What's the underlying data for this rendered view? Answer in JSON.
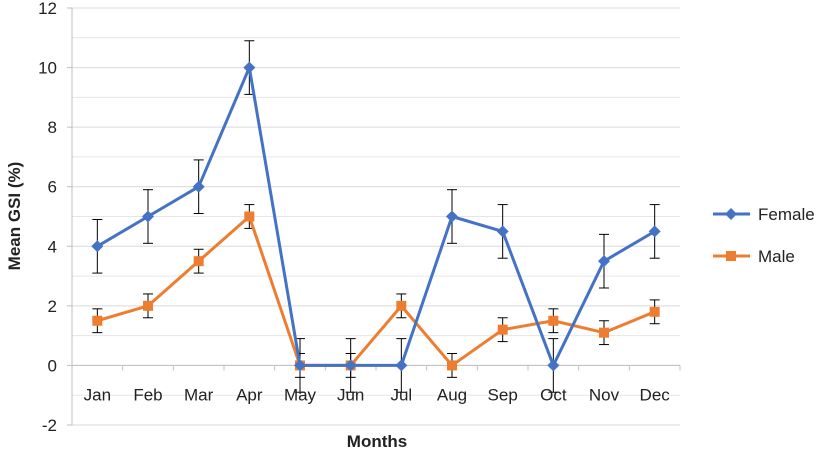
{
  "chart_data": {
    "type": "line",
    "categories": [
      "Jan",
      "Feb",
      "Mar",
      "Apr",
      "May",
      "Jun",
      "Jul",
      "Aug",
      "Sep",
      "Oct",
      "Nov",
      "Dec"
    ],
    "series": [
      {
        "name": "Female",
        "color": "#4472C4",
        "marker": "diamond",
        "values": [
          4,
          5,
          6,
          10,
          0,
          0,
          0,
          5,
          4.5,
          0,
          3.5,
          4.5
        ],
        "error": [
          0.9,
          0.9,
          0.9,
          0.9,
          0.9,
          0.9,
          0.9,
          0.9,
          0.9,
          0.9,
          0.9,
          0.9
        ]
      },
      {
        "name": "Male",
        "color": "#ED7D31",
        "marker": "square",
        "values": [
          1.5,
          2,
          3.5,
          5,
          0,
          0,
          2,
          0,
          1.2,
          1.5,
          1.1,
          1.8
        ],
        "error": [
          0.4,
          0.4,
          0.4,
          0.4,
          0.4,
          0.4,
          0.4,
          0.4,
          0.4,
          0.4,
          0.4,
          0.4
        ]
      }
    ],
    "title": "",
    "xlabel": "Months",
    "ylabel": "Mean GSI (%)",
    "ylim": [
      -2,
      12
    ],
    "yticks": [
      "-2",
      "0",
      "2",
      "4",
      "6",
      "8",
      "10",
      "12"
    ],
    "grid": "horizontal",
    "legend": "right"
  }
}
